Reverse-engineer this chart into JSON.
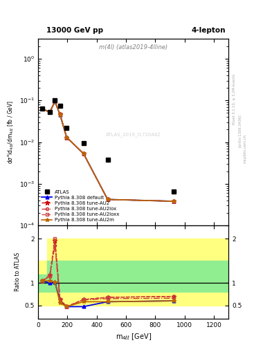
{
  "title_left": "13000 GeV pp",
  "title_right": "4-lepton",
  "obs_label": "m(4l) (atlas2019-4lline)",
  "atlas_id": "ATLAS_2019_I1720442",
  "right_label1": "Rivet 3.1.10, ≥ 3.2M events",
  "right_label2": "[arXiv:1306.3436]",
  "right_label3": "mcplots.cern.ch",
  "bin_edges": [
    0,
    60,
    100,
    130,
    170,
    220,
    400,
    550,
    1300
  ],
  "data_x": [
    30,
    80,
    115,
    150,
    195,
    310,
    475,
    925
  ],
  "data_y": [
    0.065,
    0.052,
    0.1,
    0.075,
    0.022,
    0.0095,
    0.0038,
    0.00065
  ],
  "mc_default_y": [
    0.063,
    0.052,
    0.095,
    0.045,
    0.013,
    0.0053,
    0.00042,
    0.00038
  ],
  "mc_AU2_y": [
    0.063,
    0.052,
    0.095,
    0.047,
    0.013,
    0.0053,
    0.00042,
    0.00038
  ],
  "mc_AU2lox_y": [
    0.063,
    0.052,
    0.095,
    0.046,
    0.013,
    0.0053,
    0.00042,
    0.00038
  ],
  "mc_AU2loxx_y": [
    0.063,
    0.052,
    0.095,
    0.047,
    0.013,
    0.0053,
    0.00042,
    0.00038
  ],
  "mc_AU2m_y": [
    0.063,
    0.052,
    0.095,
    0.045,
    0.013,
    0.0053,
    0.00042,
    0.00038
  ],
  "ratio_default": [
    1.05,
    1.0,
    1.02,
    0.6,
    0.47,
    0.47,
    0.58,
    0.6
  ],
  "ratio_AU2": [
    1.05,
    1.18,
    1.95,
    0.63,
    0.47,
    0.63,
    0.68,
    0.7
  ],
  "ratio_AU2lox": [
    1.05,
    1.15,
    1.85,
    0.58,
    0.46,
    0.62,
    0.65,
    0.66
  ],
  "ratio_AU2loxx": [
    1.05,
    1.18,
    2.0,
    0.63,
    0.47,
    0.63,
    0.68,
    0.7
  ],
  "ratio_AU2m": [
    1.05,
    1.05,
    1.02,
    0.55,
    0.47,
    0.58,
    0.58,
    0.6
  ],
  "color_default": "#0000ee",
  "color_AU2": "#cc0000",
  "color_AU2lox": "#cc3333",
  "color_AU2loxx": "#cc4444",
  "color_AU2m": "#bb6600",
  "yellow_lo": [
    0.5,
    0.5,
    0.5,
    0.5,
    0.5,
    0.5,
    0.5,
    0.5
  ],
  "yellow_hi": [
    1.5,
    2.0,
    2.0,
    2.0,
    2.0,
    2.0,
    2.0,
    2.0
  ],
  "green_lo": [
    0.8,
    0.8,
    0.8,
    0.8,
    0.8,
    0.8,
    0.8,
    0.8
  ],
  "green_hi": [
    1.2,
    1.5,
    1.5,
    1.5,
    1.5,
    1.5,
    1.5,
    1.5
  ],
  "ylim_main": [
    0.0001,
    3.0
  ],
  "ylim_ratio": [
    0.2,
    2.3
  ],
  "yticks_ratio": [
    0.5,
    1.0,
    2.0
  ],
  "yticklabels_ratio": [
    "0.5",
    "1",
    "2"
  ],
  "xlim": [
    0,
    1300
  ]
}
